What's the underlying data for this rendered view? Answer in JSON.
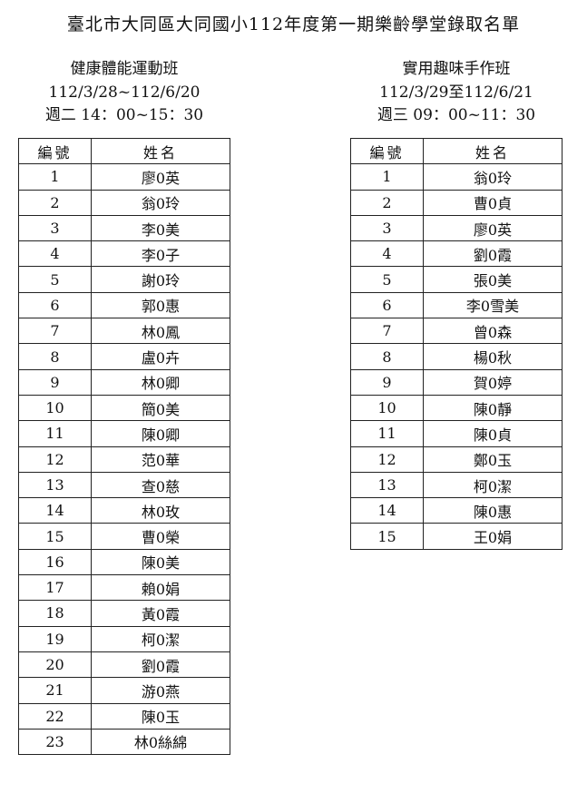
{
  "title": "臺北市大同區大同國小112年度第一期樂齡學堂錄取名單",
  "columns": {
    "number": "編號",
    "name": "姓名"
  },
  "classes": [
    {
      "name": "健康體能運動班",
      "dates": "112/3/28~112/6/20",
      "time": "週二 14：00~15：30",
      "students": [
        "廖0英",
        "翁0玲",
        "李0美",
        "李0子",
        "謝0玲",
        "郭0惠",
        "林0鳳",
        "盧0卉",
        "林0卿",
        "簡0美",
        "陳0卿",
        "范0華",
        "查0慈",
        "林0玫",
        "曹0榮",
        "陳0美",
        "賴0娟",
        "黃0霞",
        "柯0潔",
        "劉0霞",
        "游0燕",
        "陳0玉",
        "林0絲綿"
      ]
    },
    {
      "name": "實用趣味手作班",
      "dates": "112/3/29至112/6/21",
      "time": "週三 09：00~11：30",
      "students": [
        "翁0玲",
        "曹0貞",
        "廖0英",
        "劉0霞",
        "張0美",
        "李0雪美",
        "曾0森",
        "楊0秋",
        "賀0婷",
        "陳0靜",
        "陳0貞",
        "鄭0玉",
        "柯0潔",
        "陳0惠",
        "王0娟"
      ]
    }
  ]
}
